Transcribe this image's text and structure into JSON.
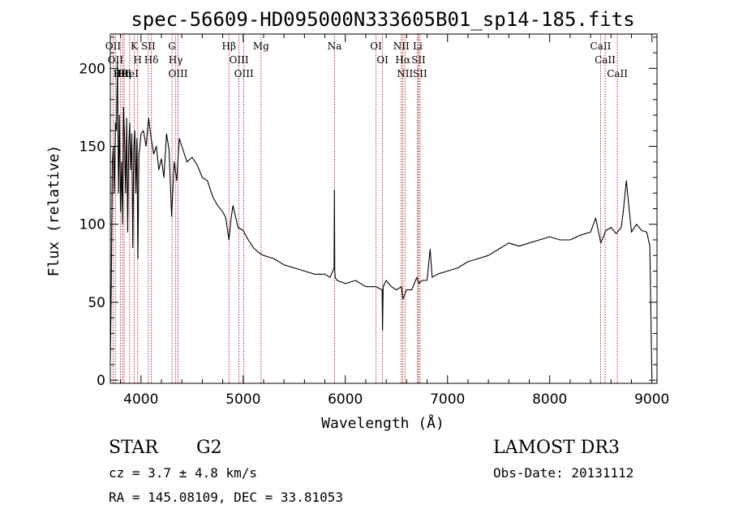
{
  "chart_data": {
    "type": "line",
    "title": "spec-56609-HD095000N333605B01_sp14-185.fits",
    "xlabel": "Wavelength (Å)",
    "ylabel": "Flux (relative)",
    "xlim": [
      3700,
      9050
    ],
    "ylim": [
      -2,
      222
    ],
    "x_ticks": [
      4000,
      5000,
      6000,
      7000,
      8000,
      9000
    ],
    "y_ticks": [
      0,
      50,
      100,
      150,
      200
    ],
    "grid": false,
    "series": [
      {
        "x": [
          3700,
          3710,
          3720,
          3730,
          3740,
          3750,
          3760,
          3770,
          3780,
          3790,
          3800,
          3810,
          3820,
          3830,
          3840,
          3850,
          3860,
          3870,
          3880,
          3890,
          3900,
          3910,
          3920,
          3930,
          3940,
          3950,
          3960,
          3970,
          3980,
          3990,
          4000,
          4025,
          4050,
          4075,
          4100,
          4125,
          4150,
          4175,
          4200,
          4225,
          4250,
          4275,
          4300,
          4325,
          4350,
          4375,
          4400,
          4450,
          4500,
          4550,
          4600,
          4650,
          4700,
          4750,
          4800,
          4830,
          4861,
          4880,
          4900,
          4950,
          5000,
          5050,
          5100,
          5150,
          5200,
          5300,
          5400,
          5500,
          5600,
          5700,
          5800,
          5850,
          5890,
          5893,
          5896,
          5900,
          5920,
          6000,
          6100,
          6200,
          6300,
          6360,
          6364,
          6370,
          6400,
          6450,
          6500,
          6550,
          6563,
          6600,
          6650,
          6700,
          6720,
          6750,
          6800,
          6830,
          6850,
          6900,
          7000,
          7100,
          7200,
          7300,
          7400,
          7500,
          7600,
          7700,
          7800,
          7900,
          8000,
          8100,
          8200,
          8300,
          8400,
          8450,
          8500,
          8550,
          8600,
          8650,
          8700,
          8720,
          8750,
          8800,
          8850,
          8900,
          8950,
          8980,
          9000
        ],
        "y": [
          12,
          68,
          140,
          150,
          120,
          165,
          160,
          205,
          120,
          170,
          108,
          140,
          100,
          175,
          155,
          120,
          168,
          95,
          150,
          165,
          135,
          158,
          85,
          150,
          160,
          120,
          155,
          78,
          145,
          150,
          158,
          160,
          150,
          168,
          155,
          145,
          150,
          135,
          142,
          130,
          158,
          148,
          105,
          140,
          128,
          155,
          150,
          140,
          143,
          138,
          130,
          128,
          118,
          112,
          108,
          104,
          90,
          103,
          112,
          98,
          96,
          90,
          85,
          82,
          80,
          78,
          74,
          72,
          70,
          68,
          68,
          66,
          72,
          122,
          70,
          66,
          64,
          62,
          64,
          60,
          60,
          58,
          32,
          60,
          64,
          60,
          58,
          60,
          52,
          58,
          58,
          66,
          62,
          64,
          64,
          84,
          66,
          68,
          70,
          72,
          76,
          78,
          80,
          84,
          88,
          86,
          88,
          90,
          92,
          90,
          90,
          93,
          95,
          104,
          88,
          96,
          98,
          94,
          98,
          108,
          128,
          95,
          100,
          96,
          95,
          86,
          2
        ]
      }
    ],
    "spectral_lines": [
      {
        "wavelength": 3727,
        "label": "OII"
      },
      {
        "wavelength": 3750,
        "label": "OII"
      },
      {
        "wavelength": 3798,
        "label": "Hθ"
      },
      {
        "wavelength": 3820,
        "label": "HeI"
      },
      {
        "wavelength": 3835,
        "label": "Hη"
      },
      {
        "wavelength": 3889,
        "label": "HeI"
      },
      {
        "wavelength": 3934,
        "label": "K"
      },
      {
        "wavelength": 3968,
        "label": "H"
      },
      {
        "wavelength": 4072,
        "label": "SII"
      },
      {
        "wavelength": 4102,
        "label": "Hδ"
      },
      {
        "wavelength": 4304,
        "label": "G"
      },
      {
        "wavelength": 4340,
        "label": "Hγ"
      },
      {
        "wavelength": 4363,
        "label": "OIII"
      },
      {
        "wavelength": 4861,
        "label": "Hβ"
      },
      {
        "wavelength": 4959,
        "label": "OIII"
      },
      {
        "wavelength": 5007,
        "label": "OIII"
      },
      {
        "wavelength": 5175,
        "label": "Mg"
      },
      {
        "wavelength": 5894,
        "label": "Na"
      },
      {
        "wavelength": 6300,
        "label": "OI"
      },
      {
        "wavelength": 6364,
        "label": "OI"
      },
      {
        "wavelength": 6548,
        "label": "NII"
      },
      {
        "wavelength": 6563,
        "label": "Hα"
      },
      {
        "wavelength": 6583,
        "label": "NII"
      },
      {
        "wavelength": 6708,
        "label": "Li"
      },
      {
        "wavelength": 6716,
        "label": "SII"
      },
      {
        "wavelength": 6731,
        "label": "SII"
      },
      {
        "wavelength": 8498,
        "label": "CaII"
      },
      {
        "wavelength": 8542,
        "label": "CaII"
      },
      {
        "wavelength": 8662,
        "label": "CaII"
      }
    ],
    "colors": {
      "spectrum": "#000000",
      "line_markers": "#b22222",
      "axes": "#000000"
    }
  },
  "info": {
    "object_type": "STAR",
    "subclass": "G2",
    "survey": "LAMOST DR3",
    "redshift": "cz = 3.7 ± 4.8 km/s",
    "obs_date": "Obs-Date: 20131112",
    "coords": "RA = 145.08109, DEC =  33.81053"
  }
}
